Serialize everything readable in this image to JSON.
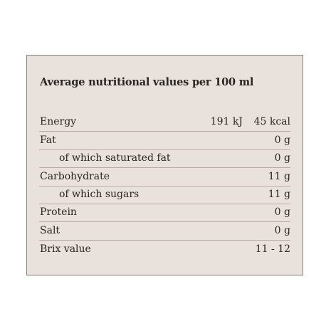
{
  "heading": "Average nutritional values per 100 ml",
  "rows": [
    {
      "label": "Energy",
      "kj": "191 kJ",
      "value": "45 kcal"
    },
    {
      "label": "Fat",
      "value": "0 g"
    },
    {
      "label": "of which saturated fat",
      "value": "0 g"
    },
    {
      "label": "Carbohydrate",
      "value": "11 g"
    },
    {
      "label": "of which sugars",
      "value": "11 g"
    },
    {
      "label": "Protein",
      "value": "0 g"
    },
    {
      "label": "Salt",
      "value": "0 g"
    },
    {
      "label": "Brix value",
      "value": "11 - 12"
    }
  ]
}
